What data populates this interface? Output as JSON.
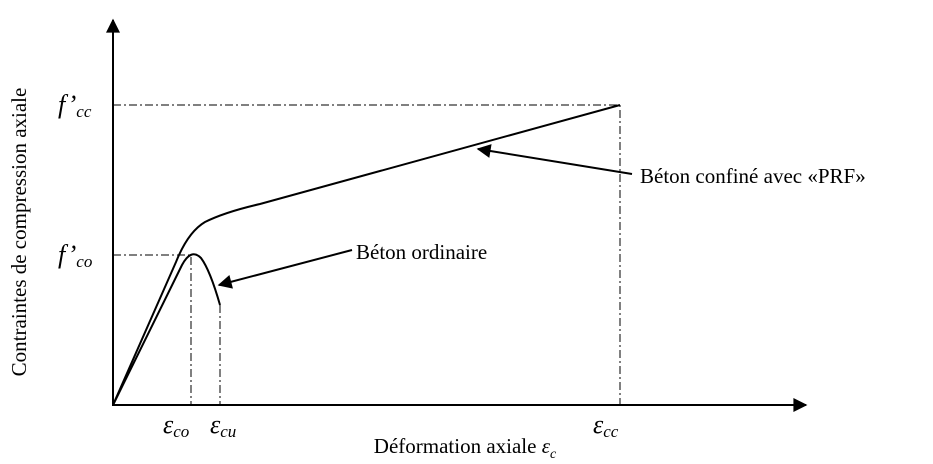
{
  "diagram": {
    "y_axis_label": "Contraintes de compression axiale",
    "x_axis_label": {
      "text": "Déformation axiale ",
      "symbol": "ε",
      "sub": "c"
    },
    "y_ticks": [
      {
        "main": "f’",
        "sub": "cc"
      },
      {
        "main": "f’",
        "sub": "co"
      }
    ],
    "x_ticks": [
      {
        "main": "ε",
        "sub": "co"
      },
      {
        "main": "ε",
        "sub": "cu"
      },
      {
        "main": "ε",
        "sub": "cc"
      }
    ],
    "annotations": [
      "Béton ordinaire",
      "Béton confiné avec «PRF»"
    ]
  }
}
